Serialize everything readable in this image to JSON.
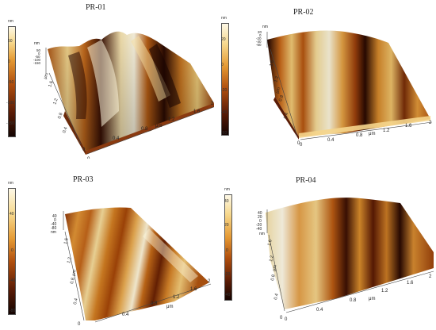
{
  "panels": [
    {
      "title": "PR-01",
      "colorbar": {
        "unit": "nm",
        "ticks": [
          "50",
          "0",
          "-50",
          "-100",
          "-150"
        ]
      },
      "z_axis": {
        "unit": "nm",
        "ticks": [
          "50",
          "0",
          "-50",
          "-100",
          "-150"
        ]
      },
      "y_axis": {
        "unit": "μm",
        "ticks": [
          "0",
          "0.4",
          "0.8",
          "1.2",
          "1.6"
        ]
      },
      "x_axis": {
        "unit": "μm",
        "ticks": [
          "0",
          "0.4",
          "0.8",
          "1.2",
          "1.6",
          "2"
        ]
      }
    },
    {
      "title": "PR-02",
      "colorbar": {
        "unit": "nm",
        "ticks": [
          "20",
          "0",
          "-20",
          "-40",
          "-60"
        ]
      },
      "z_axis": {
        "unit": "nm",
        "ticks": [
          "20",
          "0",
          "-20",
          "-40",
          "-60"
        ]
      },
      "y_axis": {
        "unit": "μm",
        "ticks": [
          "0",
          "0.4",
          "0.8",
          "1.2",
          "1.6"
        ]
      },
      "x_axis": {
        "unit": "μm",
        "ticks": [
          "0",
          "0.4",
          "0.8",
          "1.2",
          "1.6",
          "2"
        ]
      }
    },
    {
      "title": "PR-03",
      "colorbar": {
        "unit": "nm",
        "ticks": [
          "40",
          "0",
          "-40",
          "-80"
        ]
      },
      "z_axis": {
        "unit": "nm",
        "ticks": [
          "40",
          "0",
          "-40",
          "-80"
        ]
      },
      "y_axis": {
        "unit": "μm",
        "ticks": [
          "0",
          "0.4",
          "0.8",
          "1.2",
          "1.6"
        ]
      },
      "x_axis": {
        "unit": "μm",
        "ticks": [
          "0.4",
          "0.8",
          "1.2",
          "1.6",
          "2"
        ]
      }
    },
    {
      "title": "PR-04",
      "colorbar": {
        "unit": "nm",
        "ticks": [
          "40",
          "20",
          "0",
          "-20",
          "-40"
        ]
      },
      "z_axis": {
        "unit": "nm",
        "ticks": [
          "40",
          "20",
          "0",
          "-20",
          "-40"
        ]
      },
      "y_axis": {
        "unit": "μm",
        "ticks": [
          "0",
          "0.4",
          "0.8",
          "1.2",
          "1.6"
        ]
      },
      "x_axis": {
        "unit": "μm",
        "ticks": [
          "0",
          "0.4",
          "0.8",
          "1.2",
          "1.6",
          "2"
        ]
      }
    }
  ],
  "colors": {
    "colormap": [
      "#2a0a02",
      "#6e2408",
      "#b5550f",
      "#e0902a",
      "#f5cf7a",
      "#fdf6dc"
    ]
  }
}
